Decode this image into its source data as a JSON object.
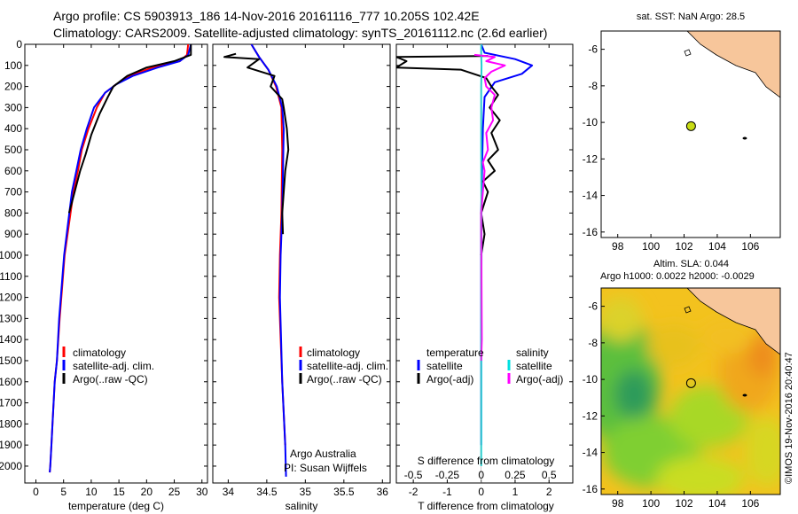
{
  "header": {
    "line1": "Argo profile: CS 5903913_186 14-Nov-2016 20161116_777 10.205S 102.42E",
    "line2": "Climatology: CARS2009. Satellite-adjusted climatology: synTS_20161112.nc (2.6d earlier)"
  },
  "colors": {
    "climatology": "#ff0000",
    "satellite": "#0000ff",
    "argo": "#000000",
    "s_satellite": "#00e0e0",
    "s_argo": "#ff00ff",
    "land": "#f7c69b"
  },
  "chart_data": [
    {
      "type": "line",
      "id": "temperature",
      "xlabel": "temperature (deg C)",
      "ylabel": "",
      "xlim": [
        -2,
        31
      ],
      "ylim": [
        2080,
        0
      ],
      "xticks": [
        "0",
        "5",
        "10",
        "15",
        "20",
        "25",
        "30"
      ],
      "xtick_values": [
        0,
        5,
        10,
        15,
        20,
        25,
        30
      ],
      "yticks": [
        "0",
        "100",
        "200",
        "300",
        "400",
        "500",
        "600",
        "700",
        "800",
        "900",
        "1000",
        "1100",
        "1200",
        "1300",
        "1400",
        "1500",
        "1600",
        "1700",
        "1800",
        "1900",
        "2000"
      ],
      "ytick_values": [
        0,
        100,
        200,
        300,
        400,
        500,
        600,
        700,
        800,
        900,
        1000,
        1100,
        1200,
        1300,
        1400,
        1500,
        1600,
        1700,
        1800,
        1900,
        2000
      ],
      "legend": [
        "climatology",
        "satellite-adj. clim.",
        "Argo(..raw -QC)"
      ],
      "series": [
        {
          "name": "climatology",
          "color": "#ff0000",
          "x": [
            27.5,
            27.3,
            26,
            21,
            17,
            14.5,
            12.5,
            11,
            9.5,
            8.3,
            7.6,
            6.8,
            5.2,
            4.6,
            4.3,
            3.8,
            3.4,
            3,
            2.8,
            2.6,
            2.5
          ],
          "y": [
            0,
            50,
            80,
            110,
            150,
            190,
            230,
            300,
            400,
            500,
            600,
            700,
            1000,
            1200,
            1300,
            1500,
            1600,
            1800,
            1900,
            2000,
            2030
          ]
        },
        {
          "name": "satellite-adj. clim.",
          "color": "#0000ff",
          "x": [
            28,
            27.5,
            26,
            22,
            17.5,
            14.5,
            12.5,
            10.5,
            9.2,
            8.1,
            7.3,
            6.5,
            5.1,
            4.5,
            4.2,
            3.8,
            3.4,
            3,
            2.8,
            2.6,
            2.5
          ],
          "y": [
            0,
            50,
            80,
            110,
            150,
            190,
            230,
            300,
            400,
            500,
            600,
            700,
            1000,
            1200,
            1300,
            1500,
            1600,
            1800,
            1900,
            2000,
            2030
          ]
        },
        {
          "name": "Argo(..raw -QC)",
          "color": "#000000",
          "x": [
            28,
            28,
            25,
            20,
            16.5,
            14,
            13,
            11.5,
            10,
            9,
            8,
            7,
            6
          ],
          "y": [
            0,
            50,
            80,
            110,
            150,
            200,
            250,
            330,
            430,
            520,
            600,
            700,
            800
          ]
        }
      ]
    },
    {
      "type": "line",
      "id": "salinity",
      "xlabel": "salinity",
      "ylabel": "",
      "xlim": [
        33.8,
        36.1
      ],
      "ylim": [
        2080,
        0
      ],
      "xticks": [
        "34",
        "34.5",
        "35",
        "35.5",
        "36"
      ],
      "xtick_values": [
        34,
        34.5,
        35,
        35.5,
        36
      ],
      "legend": [
        "climatology",
        "satellite-adj. clim.",
        "Argo(..raw -QC)"
      ],
      "footer": [
        "Argo Australia",
        "PI: Susan Wijffels"
      ],
      "series": [
        {
          "name": "climatology",
          "color": "#ff0000",
          "x": [
            34.3,
            34.4,
            34.52,
            34.62,
            34.69,
            34.7,
            34.69,
            34.67,
            34.66,
            34.7,
            34.74
          ],
          "y": [
            0,
            60,
            120,
            200,
            300,
            500,
            800,
            1000,
            1200,
            1600,
            1900
          ]
        },
        {
          "name": "satellite-adj. clim.",
          "color": "#0000ff",
          "x": [
            34.3,
            34.4,
            34.52,
            34.63,
            34.7,
            34.72,
            34.7,
            34.68,
            34.67,
            34.7,
            34.74,
            34.75
          ],
          "y": [
            0,
            60,
            120,
            200,
            300,
            400,
            800,
            1000,
            1200,
            1600,
            1900,
            2050
          ]
        },
        {
          "name": "Argo(..raw -QC)",
          "color": "#000000",
          "x": [
            34.1,
            33.95,
            34.4,
            34.25,
            34.6,
            34.55,
            34.7,
            34.72,
            34.76,
            34.78,
            34.74,
            34.72,
            34.7,
            34.71
          ],
          "y": [
            45,
            60,
            70,
            110,
            150,
            200,
            260,
            300,
            400,
            500,
            600,
            700,
            800,
            900
          ]
        }
      ]
    },
    {
      "type": "line",
      "id": "difference",
      "xlabel": "T difference from climatology",
      "xlabel_top": "S difference from climatology",
      "xlim": [
        -2.5,
        2.7
      ],
      "ylim": [
        2080,
        0
      ],
      "xticks": [
        "-2",
        "-1",
        "0",
        "1",
        "2"
      ],
      "xtick_values": [
        -2,
        -1,
        0,
        1,
        2
      ],
      "xticks_top": [
        "-0.5",
        "-0.25",
        "0",
        "0.25",
        "0.5"
      ],
      "legend_titles": [
        "temperature",
        "salinity"
      ],
      "legend": [
        "satellite",
        "Argo(-adj)",
        "satellite",
        "Argo(-adj)"
      ],
      "series": [
        {
          "name": "temperature satellite",
          "color": "#0000ff",
          "x": [
            0,
            0.1,
            1,
            1.5,
            1.2,
            0.4,
            0.1,
            0.05,
            0,
            0
          ],
          "y": [
            0,
            40,
            70,
            100,
            140,
            180,
            250,
            400,
            800,
            1900
          ]
        },
        {
          "name": "temperature Argo(-adj)",
          "color": "#000000",
          "x": [
            0.2,
            -2.5,
            -2.2,
            -2.5,
            -0.6,
            0.15,
            0.3,
            0.5,
            0.25,
            0.55,
            0.3,
            0.5,
            0.2,
            0.4,
            0.05,
            0.2,
            0,
            0.1,
            0
          ],
          "y": [
            55,
            60,
            80,
            110,
            120,
            160,
            200,
            240,
            300,
            360,
            420,
            500,
            550,
            600,
            650,
            700,
            800,
            900,
            1000
          ]
        },
        {
          "name": "salinity satellite",
          "color": "#00e0e0",
          "x": [
            0,
            0,
            0.01,
            0,
            0,
            0.01,
            0,
            0
          ],
          "y": [
            0,
            50,
            100,
            200,
            500,
            1000,
            1500,
            2000
          ]
        },
        {
          "name": "salinity Argo(-adj)",
          "color": "#ff00ff",
          "x": [
            -0.2,
            0.4,
            0.15,
            0.7,
            0.3,
            0.1,
            0.15,
            0.4,
            0.3,
            0.35,
            0.15,
            0.2,
            0.05,
            0.1,
            0.05,
            0,
            0.02,
            0
          ],
          "y": [
            50,
            60,
            80,
            100,
            130,
            160,
            200,
            240,
            300,
            360,
            420,
            500,
            560,
            600,
            700,
            800,
            1400,
            1500
          ]
        }
      ]
    },
    {
      "type": "scatter",
      "id": "sst_map",
      "title": "sat. SST: NaN Argo: 28.5",
      "xlim": [
        97,
        107.8
      ],
      "ylim": [
        -16.3,
        -5
      ],
      "xticks": [
        "98",
        "100",
        "102",
        "104",
        "106"
      ],
      "xtick_values": [
        98,
        100,
        102,
        104,
        106
      ],
      "yticks": [
        "-6",
        "-8",
        "-10",
        "-12",
        "-14",
        "-16"
      ],
      "ytick_values": [
        -6,
        -8,
        -10,
        -12,
        -14,
        -16
      ],
      "points": [
        {
          "x": 102.42,
          "y": -10.205,
          "color": "#c8dc14"
        }
      ]
    },
    {
      "type": "heatmap",
      "id": "sla_map",
      "title": "Altim. SLA: 0.044",
      "subtitle": "Argo h1000: 0.0022 h2000: -0.0029",
      "xlim": [
        97,
        107.8
      ],
      "ylim": [
        -16.3,
        -5
      ],
      "xticks": [
        "98",
        "100",
        "102",
        "104",
        "106"
      ],
      "xtick_values": [
        98,
        100,
        102,
        104,
        106
      ],
      "yticks": [
        "-6",
        "-8",
        "-10",
        "-12",
        "-14",
        "-16"
      ],
      "ytick_values": [
        -6,
        -8,
        -10,
        -12,
        -14,
        -16
      ],
      "points": [
        {
          "x": 102.42,
          "y": -10.205
        }
      ]
    }
  ],
  "credit": "©IMOS 19-Nov-2016 20:40:47"
}
